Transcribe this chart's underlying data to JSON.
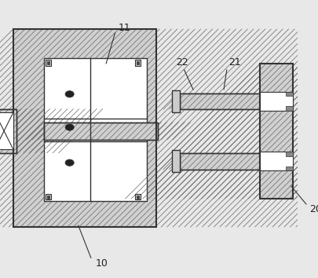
{
  "bg_color": "#e8e8e8",
  "hatch_color": "#888888",
  "line_color": "#333333",
  "white_color": "#ffffff",
  "dark_gray": "#444444",
  "mid_gray": "#aaaaaa",
  "label_10": "10",
  "label_11": "11",
  "label_20": "20",
  "label_21": "21",
  "label_22": "22",
  "figsize": [
    4.06,
    3.54
  ],
  "dpi": 100
}
